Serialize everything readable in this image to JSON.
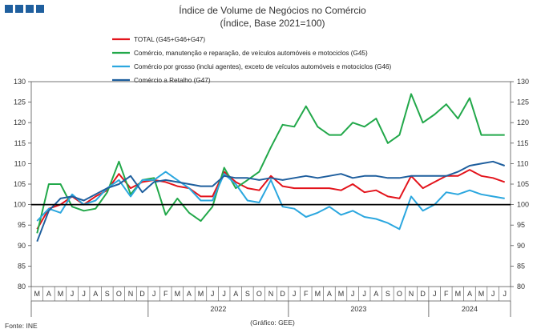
{
  "brand": {
    "color": "#1f5f9e"
  },
  "chart_data": {
    "type": "line",
    "title": "Índice de Volume de Negócios no Comércio",
    "subtitle": "(Índice, Base 2021=100)",
    "source": "Fonte: INE",
    "credit": "(Gráfico: GEE)",
    "ylim": [
      80,
      130
    ],
    "yticks": [
      "80",
      "85",
      "90",
      "95",
      "100",
      "105",
      "110",
      "115",
      "120",
      "125",
      "130"
    ],
    "reference_line": 100,
    "x": [
      "M",
      "A",
      "M",
      "J",
      "J",
      "A",
      "S",
      "O",
      "N",
      "D",
      "J",
      "F",
      "M",
      "A",
      "M",
      "J",
      "J",
      "A",
      "S",
      "O",
      "N",
      "D",
      "J",
      "F",
      "M",
      "A",
      "M",
      "J",
      "J",
      "A",
      "S",
      "O",
      "N",
      "D",
      "J",
      "F",
      "M",
      "A",
      "M",
      "J",
      "J"
    ],
    "year_labels": [
      {
        "label": "2022",
        "first_index": 10,
        "last_index": 21
      },
      {
        "label": "2023",
        "first_index": 22,
        "last_index": 33
      },
      {
        "label": "2024",
        "first_index": 34,
        "last_index": 40
      }
    ],
    "series": [
      {
        "name": "TOTAL (G45+G46+G47)",
        "color": "#e3141c",
        "values": [
          94,
          99,
          100,
          102,
          100,
          102,
          103.5,
          107.5,
          104,
          105.5,
          106,
          105.5,
          104.5,
          104,
          102,
          102,
          108,
          105.5,
          104,
          103.5,
          107,
          104.5,
          104,
          104,
          104,
          104,
          103.5,
          105,
          103,
          103.5,
          102,
          101.5,
          107,
          104,
          105.5,
          107,
          107,
          108.5,
          107,
          106.5,
          105.5
        ]
      },
      {
        "name": "Comércio, manutenção e reparação, de veículos automóveis e motociclos (G45)",
        "color": "#22a84a",
        "values": [
          93,
          105,
          105,
          99.5,
          98.5,
          99,
          103,
          110.5,
          102.5,
          106,
          106.5,
          97.5,
          101.5,
          98,
          96,
          99.5,
          109,
          104,
          106,
          108,
          114,
          119.5,
          119,
          124,
          119,
          117,
          117,
          120,
          119,
          121,
          115,
          117,
          127,
          120,
          122,
          124.5,
          121,
          126,
          117,
          117,
          117
        ]
      },
      {
        "name": "Comércio por grosso (inclui agentes), exceto de veículos automóveis e motociclos (G46)",
        "color": "#2ba7df",
        "values": [
          96,
          99,
          98,
          102.5,
          100,
          101,
          104,
          106,
          102,
          106,
          106,
          108,
          106,
          104,
          101,
          101,
          107.5,
          105,
          101,
          100.5,
          106,
          99.5,
          99,
          97,
          98,
          99.5,
          97.5,
          98.5,
          97,
          96.5,
          95.5,
          94,
          102,
          98.5,
          100,
          103,
          102.5,
          103.5,
          102.5,
          102,
          101.5
        ]
      },
      {
        "name": "Comércio a Retalho (G47)",
        "color": "#1f5f9e",
        "values": [
          91,
          98.5,
          101.5,
          102,
          101,
          102.5,
          104,
          105,
          107,
          103,
          105.5,
          106,
          105.5,
          105,
          104.5,
          104.5,
          107,
          106.5,
          106.5,
          106,
          106.5,
          106,
          106.5,
          107,
          106.5,
          107,
          107.5,
          106.5,
          107,
          107,
          106.5,
          106.5,
          107,
          107,
          107,
          107,
          108,
          109.5,
          110,
          110.5,
          109.5
        ]
      }
    ]
  }
}
